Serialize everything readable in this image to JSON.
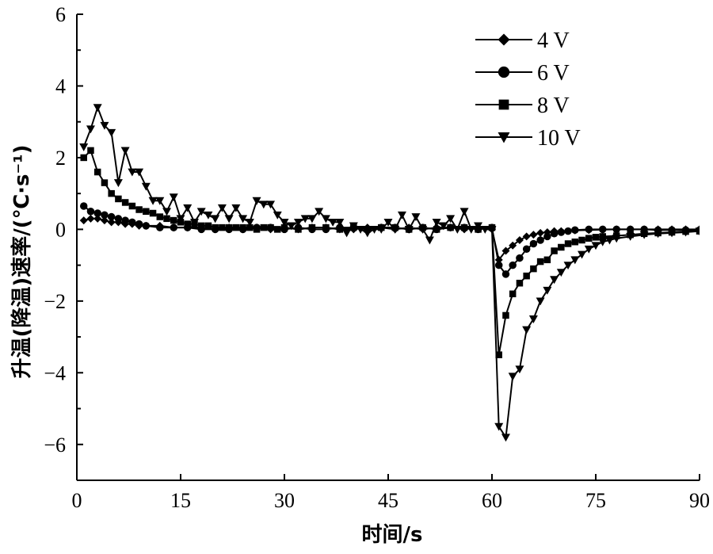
{
  "chart_data": {
    "type": "line",
    "xlabel": "时间/s",
    "ylabel": "升温(降温)速率/(℃·s⁻¹)",
    "xlim": [
      0,
      90
    ],
    "ylim": [
      -7,
      6
    ],
    "xticks": [
      "0",
      "15",
      "30",
      "45",
      "60",
      "75",
      "90"
    ],
    "yticks": [
      "6",
      "4",
      "2",
      "0",
      "−2",
      "−4",
      "−6"
    ],
    "grid": false,
    "legend_position": "top-right",
    "series": [
      {
        "name": "4 V",
        "marker": "diamond",
        "x": [
          1,
          2,
          3,
          4,
          5,
          6,
          7,
          8,
          9,
          10,
          12,
          14,
          16,
          18,
          20,
          22,
          24,
          26,
          28,
          30,
          32,
          34,
          36,
          38,
          40,
          42,
          44,
          46,
          48,
          50,
          52,
          54,
          56,
          58,
          60,
          61,
          62,
          63,
          64,
          65,
          66,
          67,
          68,
          69,
          70,
          72,
          74,
          76,
          78,
          80,
          82,
          84,
          86,
          88,
          90
        ],
        "y": [
          0.25,
          0.3,
          0.3,
          0.25,
          0.2,
          0.2,
          0.15,
          0.15,
          0.1,
          0.1,
          0.1,
          0.05,
          0.05,
          0.05,
          0.0,
          0.05,
          0.0,
          0.05,
          0.0,
          0.05,
          0.0,
          0.05,
          0.05,
          0.0,
          0.0,
          0.05,
          0.05,
          0.0,
          0.05,
          0.0,
          0.05,
          0.05,
          0.0,
          0.05,
          0.0,
          -0.85,
          -0.6,
          -0.45,
          -0.3,
          -0.2,
          -0.15,
          -0.1,
          -0.08,
          -0.05,
          -0.05,
          -0.03,
          -0.02,
          -0.01,
          0.0,
          0.0,
          0.0,
          0.0,
          0.0,
          0.0,
          0.0
        ]
      },
      {
        "name": "6 V",
        "marker": "circle",
        "x": [
          1,
          2,
          3,
          4,
          5,
          6,
          7,
          8,
          9,
          10,
          12,
          14,
          16,
          18,
          20,
          22,
          24,
          26,
          28,
          30,
          32,
          34,
          36,
          38,
          40,
          42,
          44,
          46,
          48,
          50,
          52,
          54,
          56,
          58,
          60,
          61,
          62,
          63,
          64,
          65,
          66,
          67,
          68,
          69,
          70,
          71,
          72,
          74,
          76,
          78,
          80,
          82,
          84,
          86,
          88,
          90
        ],
        "y": [
          0.65,
          0.5,
          0.45,
          0.4,
          0.35,
          0.3,
          0.25,
          0.2,
          0.15,
          0.1,
          0.05,
          0.05,
          0.05,
          0.0,
          0.0,
          0.0,
          0.0,
          0.05,
          0.05,
          0.0,
          0.05,
          0.0,
          0.0,
          0.05,
          0.05,
          0.0,
          0.05,
          0.05,
          0.0,
          0.05,
          0.0,
          0.05,
          0.05,
          0.0,
          0.05,
          -1.0,
          -1.25,
          -1.0,
          -0.8,
          -0.55,
          -0.4,
          -0.3,
          -0.2,
          -0.12,
          -0.08,
          -0.05,
          -0.02,
          0.0,
          0.0,
          0.0,
          0.0,
          0.0,
          -0.02,
          -0.02,
          -0.02,
          -0.02
        ]
      },
      {
        "name": "8 V",
        "marker": "square",
        "x": [
          1,
          2,
          3,
          4,
          5,
          6,
          7,
          8,
          9,
          10,
          11,
          12,
          13,
          14,
          15,
          16,
          17,
          18,
          19,
          20,
          21,
          22,
          23,
          24,
          25,
          26,
          27,
          28,
          29,
          30,
          32,
          34,
          36,
          38,
          40,
          42,
          44,
          46,
          48,
          50,
          52,
          54,
          56,
          58,
          60,
          61,
          62,
          63,
          64,
          65,
          66,
          67,
          68,
          69,
          70,
          71,
          72,
          73,
          74,
          75,
          76,
          78,
          80,
          82,
          84,
          86,
          88,
          90
        ],
        "y": [
          2.0,
          2.2,
          1.6,
          1.3,
          1.0,
          0.85,
          0.75,
          0.65,
          0.55,
          0.5,
          0.45,
          0.35,
          0.3,
          0.25,
          0.2,
          0.15,
          0.15,
          0.1,
          0.1,
          0.05,
          0.05,
          0.05,
          0.05,
          0.05,
          0.05,
          0.0,
          0.05,
          0.05,
          0.0,
          0.05,
          0.0,
          0.05,
          0.05,
          0.0,
          0.05,
          0.0,
          0.05,
          0.05,
          0.0,
          0.05,
          0.0,
          0.05,
          0.05,
          0.0,
          0.05,
          -3.5,
          -2.4,
          -1.8,
          -1.5,
          -1.3,
          -1.1,
          -0.9,
          -0.85,
          -0.6,
          -0.5,
          -0.4,
          -0.35,
          -0.3,
          -0.25,
          -0.22,
          -0.2,
          -0.18,
          -0.15,
          -0.12,
          -0.1,
          -0.08,
          -0.06,
          -0.05
        ]
      },
      {
        "name": "10 V",
        "marker": "triangle-down",
        "x": [
          1,
          2,
          3,
          4,
          5,
          6,
          7,
          8,
          9,
          10,
          11,
          12,
          13,
          14,
          15,
          16,
          17,
          18,
          19,
          20,
          21,
          22,
          23,
          24,
          25,
          26,
          27,
          28,
          29,
          30,
          31,
          32,
          33,
          34,
          35,
          36,
          37,
          38,
          39,
          40,
          41,
          42,
          43,
          44,
          45,
          46,
          47,
          48,
          49,
          50,
          51,
          52,
          53,
          54,
          55,
          56,
          57,
          58,
          59,
          60,
          61,
          62,
          63,
          64,
          65,
          66,
          67,
          68,
          69,
          70,
          71,
          72,
          73,
          74,
          75,
          76,
          77,
          78,
          80,
          82,
          84,
          86,
          88,
          90
        ],
        "y": [
          2.3,
          2.8,
          3.4,
          2.9,
          2.7,
          1.3,
          2.2,
          1.6,
          1.6,
          1.2,
          0.8,
          0.8,
          0.5,
          0.9,
          0.3,
          0.6,
          0.2,
          0.5,
          0.4,
          0.3,
          0.6,
          0.3,
          0.6,
          0.3,
          0.2,
          0.8,
          0.7,
          0.7,
          0.4,
          0.2,
          0.1,
          0.2,
          0.3,
          0.3,
          0.5,
          0.3,
          0.2,
          0.2,
          -0.1,
          0.1,
          0.0,
          -0.1,
          0.0,
          0.0,
          0.2,
          0.0,
          0.4,
          0.0,
          0.35,
          0.0,
          -0.3,
          0.2,
          0.1,
          0.3,
          0.0,
          0.5,
          0.0,
          0.1,
          0.0,
          0.0,
          -5.5,
          -5.8,
          -4.1,
          -3.9,
          -2.8,
          -2.5,
          -2.0,
          -1.7,
          -1.4,
          -1.2,
          -1.0,
          -0.85,
          -0.7,
          -0.55,
          -0.45,
          -0.35,
          -0.3,
          -0.25,
          -0.2,
          -0.15,
          -0.12,
          -0.1,
          -0.08,
          -0.05
        ]
      }
    ]
  }
}
